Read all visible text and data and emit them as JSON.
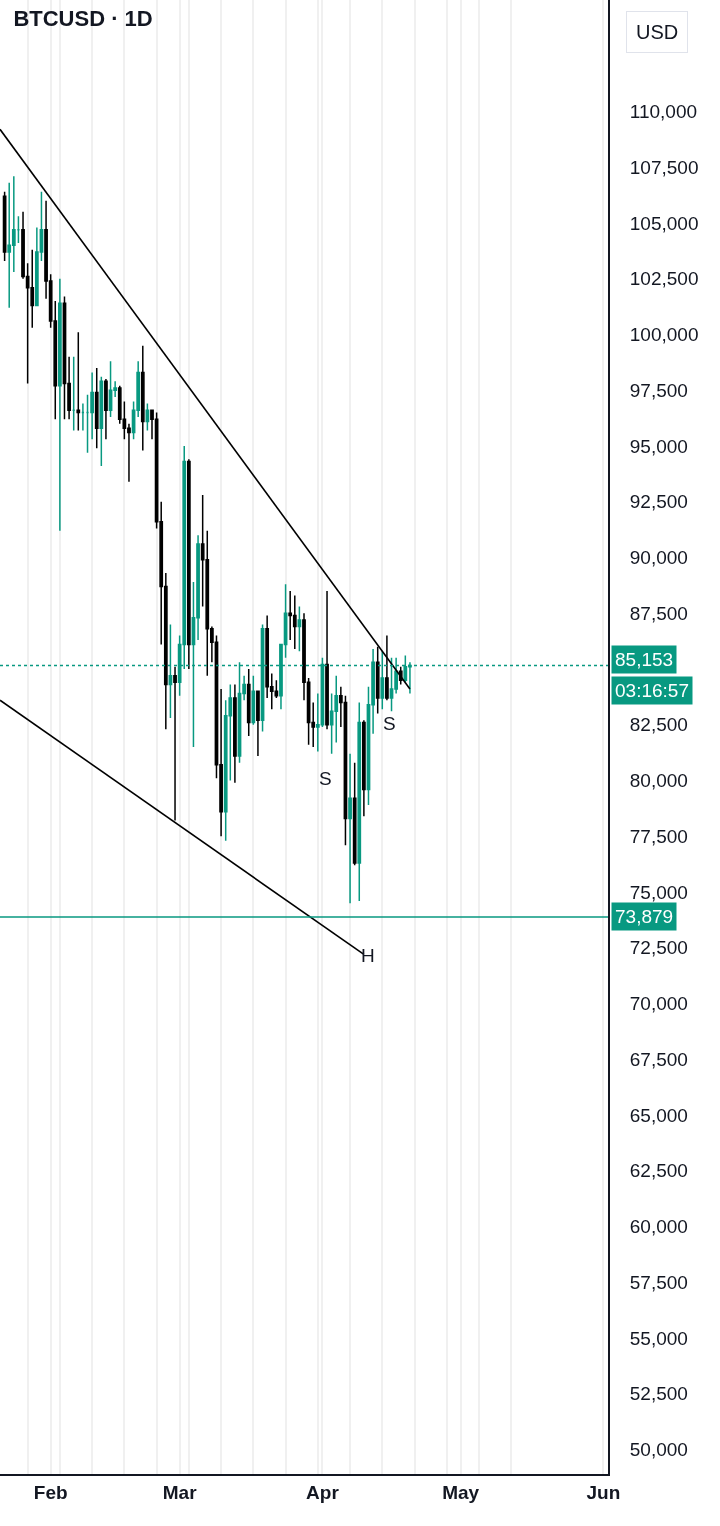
{
  "chart_data": {
    "type": "candlestick",
    "title": "BTCUSD · 1D",
    "x": [
      "--01-22",
      "--01-23",
      "--01-24",
      "--01-25",
      "--01-26",
      "--01-27",
      "--01-28",
      "--01-29",
      "--01-30",
      "--01-31",
      "--02-01",
      "--02-02",
      "--02-03",
      "--02-04",
      "--02-05",
      "--02-06",
      "--02-07",
      "--02-08",
      "--02-09",
      "--02-10",
      "--02-11",
      "--02-12",
      "--02-13",
      "--02-14",
      "--02-15",
      "--02-16",
      "--02-17",
      "--02-18",
      "--02-19",
      "--02-20",
      "--02-21",
      "--02-22",
      "--02-23",
      "--02-24",
      "--02-25",
      "--02-26",
      "--02-27",
      "--02-28",
      "--03-01",
      "--03-02",
      "--03-03",
      "--03-04",
      "--03-05",
      "--03-06",
      "--03-07",
      "--03-08",
      "--03-09",
      "--03-10",
      "--03-11",
      "--03-12",
      "--03-13",
      "--03-14",
      "--03-15",
      "--03-16",
      "--03-17",
      "--03-18",
      "--03-19",
      "--03-20",
      "--03-21",
      "--03-22",
      "--03-23",
      "--03-24",
      "--03-25",
      "--03-26",
      "--03-27",
      "--03-28",
      "--03-29",
      "--03-30",
      "--03-31",
      "--04-01",
      "--04-02",
      "--04-03",
      "--04-04",
      "--04-05",
      "--04-06",
      "--04-07",
      "--04-08",
      "--04-09",
      "--04-10",
      "--04-11",
      "--04-12",
      "--04-13",
      "--04-14",
      "--04-15",
      "--04-16",
      "--04-17",
      "--04-18",
      "--04-19",
      "--04-20"
    ],
    "ohlc": [
      [
        106200,
        106400,
        103300,
        103700
      ],
      [
        103700,
        106800,
        101200,
        104000
      ],
      [
        104000,
        107100,
        102800,
        104700
      ],
      [
        104700,
        105300,
        104100,
        104700
      ],
      [
        104700,
        105500,
        102500,
        102600
      ],
      [
        102600,
        103200,
        97800,
        102100
      ],
      [
        102100,
        103800,
        100300,
        101300
      ],
      [
        101300,
        104800,
        101300,
        103700
      ],
      [
        103700,
        106400,
        103300,
        104700
      ],
      [
        104700,
        106000,
        101600,
        102400
      ],
      [
        102400,
        102700,
        100300,
        100600
      ],
      [
        100600,
        101500,
        96200,
        97700
      ],
      [
        97700,
        102500,
        91200,
        101400
      ],
      [
        101400,
        101700,
        96200,
        97800
      ],
      [
        97800,
        99000,
        96200,
        96600
      ],
      [
        96600,
        99000,
        95700,
        96600
      ],
      [
        96600,
        100100,
        95700,
        96500
      ],
      [
        96500,
        96900,
        95700,
        96500
      ],
      [
        96500,
        97300,
        94700,
        96500
      ],
      [
        96500,
        98300,
        95300,
        97400
      ],
      [
        97400,
        98500,
        94900,
        95800
      ],
      [
        95800,
        98100,
        94100,
        97900
      ],
      [
        97900,
        98000,
        95300,
        96600
      ],
      [
        96600,
        98800,
        96300,
        97500
      ],
      [
        97500,
        97900,
        97200,
        97600
      ],
      [
        97600,
        97700,
        96000,
        96200
      ],
      [
        96200,
        97000,
        95300,
        95800
      ],
      [
        95800,
        96000,
        93400,
        95600
      ],
      [
        95600,
        97000,
        95300,
        96600
      ],
      [
        96600,
        98800,
        96300,
        98300
      ],
      [
        98300,
        99500,
        94800,
        96100
      ],
      [
        96100,
        96900,
        95700,
        96600
      ],
      [
        96600,
        96600,
        95300,
        96200
      ],
      [
        96200,
        96500,
        91300,
        91600
      ],
      [
        91600,
        92500,
        86100,
        88700
      ],
      [
        88700,
        89300,
        82300,
        84300
      ],
      [
        84300,
        87000,
        82800,
        84700
      ],
      [
        84700,
        85100,
        78200,
        84400
      ],
      [
        84400,
        86500,
        83800,
        86100
      ],
      [
        86100,
        95000,
        85000,
        94300
      ],
      [
        94300,
        94400,
        85000,
        86100
      ],
      [
        86100,
        88900,
        81500,
        87300
      ],
      [
        87300,
        91000,
        86300,
        90600
      ],
      [
        90600,
        92800,
        87800,
        89900
      ],
      [
        89900,
        91200,
        84700,
        86800
      ],
      [
        86800,
        86900,
        85300,
        86200
      ],
      [
        86200,
        86500,
        80100,
        80700
      ],
      [
        80700,
        84100,
        77500,
        78600
      ],
      [
        78600,
        83600,
        77300,
        82900
      ],
      [
        82900,
        84300,
        80000,
        83700
      ],
      [
        83700,
        84300,
        79900,
        81100
      ],
      [
        81100,
        85300,
        80800,
        83900
      ],
      [
        83900,
        84700,
        83600,
        84300
      ],
      [
        84300,
        85000,
        82000,
        82600
      ],
      [
        82600,
        84700,
        82500,
        84000
      ],
      [
        84000,
        84000,
        81100,
        82700
      ],
      [
        82700,
        87000,
        82200,
        86800
      ],
      [
        86800,
        87400,
        83700,
        84200
      ],
      [
        84200,
        84800,
        83200,
        84000
      ],
      [
        84000,
        84500,
        83700,
        83800
      ],
      [
        83800,
        86100,
        83200,
        86100
      ],
      [
        86100,
        88800,
        85500,
        87500
      ],
      [
        87500,
        88500,
        86300,
        87400
      ],
      [
        87400,
        88300,
        85900,
        86900
      ],
      [
        86900,
        87800,
        85800,
        87200
      ],
      [
        87200,
        87500,
        83600,
        84400
      ],
      [
        84400,
        84600,
        81600,
        82600
      ],
      [
        82600,
        83500,
        81500,
        82400
      ],
      [
        82400,
        83900,
        81300,
        82500
      ],
      [
        82500,
        85500,
        82400,
        85200
      ],
      [
        85200,
        88500,
        82300,
        82500
      ],
      [
        82500,
        83900,
        81200,
        83100
      ],
      [
        83100,
        84700,
        81700,
        83800
      ],
      [
        83800,
        84200,
        82400,
        83500
      ],
      [
        83500,
        83800,
        77100,
        78300
      ],
      [
        78300,
        81200,
        74500,
        79200
      ],
      [
        79200,
        80800,
        76200,
        76300
      ],
      [
        76300,
        83500,
        74600,
        82600
      ],
      [
        82600,
        82700,
        78400,
        79600
      ],
      [
        79600,
        84200,
        78900,
        83400
      ],
      [
        83400,
        85900,
        82100,
        85300
      ],
      [
        85300,
        86000,
        83000,
        83700
      ],
      [
        83700,
        85800,
        83200,
        84600
      ],
      [
        84600,
        86500,
        83600,
        83700
      ],
      [
        83700,
        85500,
        83100,
        84100
      ],
      [
        84100,
        85500,
        83900,
        84900
      ],
      [
        84900,
        85100,
        84300,
        84500
      ],
      [
        84500,
        85600,
        84400,
        85100
      ],
      [
        85100,
        85300,
        83900,
        85153
      ]
    ],
    "colors": [
      "#000000",
      "#089981",
      "#089981",
      "#089981",
      "#000000",
      "#000000",
      "#000000",
      "#089981",
      "#089981",
      "#000000",
      "#000000",
      "#000000",
      "#089981",
      "#000000",
      "#000000",
      "#089981",
      "#000000",
      "#089981",
      "#089981",
      "#089981",
      "#000000",
      "#089981",
      "#000000",
      "#089981",
      "#089981",
      "#000000",
      "#000000",
      "#000000",
      "#089981",
      "#089981",
      "#000000",
      "#089981",
      "#000000",
      "#000000",
      "#000000",
      "#000000",
      "#089981",
      "#000000",
      "#089981",
      "#089981",
      "#000000",
      "#089981",
      "#089981",
      "#000000",
      "#000000",
      "#000000",
      "#000000",
      "#000000",
      "#089981",
      "#089981",
      "#000000",
      "#089981",
      "#089981",
      "#000000",
      "#089981",
      "#000000",
      "#089981",
      "#000000",
      "#000000",
      "#000000",
      "#089981",
      "#089981",
      "#000000",
      "#000000",
      "#089981",
      "#000000",
      "#000000",
      "#000000",
      "#089981",
      "#089981",
      "#000000",
      "#089981",
      "#089981",
      "#000000",
      "#000000",
      "#089981",
      "#000000",
      "#089981",
      "#000000",
      "#089981",
      "#089981",
      "#000000",
      "#089981",
      "#000000",
      "#089981",
      "#089981",
      "#000000",
      "#089981",
      "#089981"
    ],
    "series": [
      {
        "type": "line",
        "x": [
          "--01-21",
          "--04-20"
        ],
        "values": [
          109200,
          84100
        ],
        "color": "#000000"
      },
      {
        "type": "line",
        "x": [
          "--01-21",
          "--04-10"
        ],
        "values": [
          83600,
          72200
        ],
        "color": "#000000"
      }
    ],
    "xlim": [
      "--01-21",
      "--06-02"
    ],
    "xticks": [
      {
        "value": "--02-01",
        "label": "Feb"
      },
      {
        "value": "--03-01",
        "label": "Mar"
      },
      {
        "value": "--04-01",
        "label": "Apr"
      },
      {
        "value": "--05-01",
        "label": "May"
      },
      {
        "value": "--06-01",
        "label": "Jun"
      },
      {
        "value": "--01-27",
        "label": null
      },
      {
        "value": "--02-03",
        "label": null
      },
      {
        "value": "--02-10",
        "label": null
      },
      {
        "value": "--02-17",
        "label": null
      },
      {
        "value": "--02-24",
        "label": null
      },
      {
        "value": "--03-03",
        "label": null
      },
      {
        "value": "--03-10",
        "label": null
      },
      {
        "value": "--03-17",
        "label": null
      },
      {
        "value": "--03-24",
        "label": null
      },
      {
        "value": "--03-31",
        "label": null
      },
      {
        "value": "--04-07",
        "label": null
      },
      {
        "value": "--04-14",
        "label": null
      },
      {
        "value": "--04-21",
        "label": null
      },
      {
        "value": "--04-28",
        "label": null
      },
      {
        "value": "--05-05",
        "label": null
      },
      {
        "value": "--05-12",
        "label": null
      }
    ],
    "ylim": [
      48900,
      115000
    ],
    "yticks": [
      {
        "value": 50000,
        "label": "50,000"
      },
      {
        "value": 52500,
        "label": "52,500"
      },
      {
        "value": 55000,
        "label": "55,000"
      },
      {
        "value": 57500,
        "label": "57,500"
      },
      {
        "value": 60000,
        "label": "60,000"
      },
      {
        "value": 62500,
        "label": "62,500"
      },
      {
        "value": 65000,
        "label": "65,000"
      },
      {
        "value": 67500,
        "label": "67,500"
      },
      {
        "value": 70000,
        "label": "70,000"
      },
      {
        "value": 72500,
        "label": "72,500"
      },
      {
        "value": 75000,
        "label": "75,000"
      },
      {
        "value": 77500,
        "label": "77,500"
      },
      {
        "value": 80000,
        "label": "80,000"
      },
      {
        "value": 82500,
        "label": "82,500"
      },
      {
        "value": 85000,
        "label": null
      },
      {
        "value": 87500,
        "label": "87,500"
      },
      {
        "value": 90000,
        "label": "90,000"
      },
      {
        "value": 92500,
        "label": "92,500"
      },
      {
        "value": 95000,
        "label": "95,000"
      },
      {
        "value": 97500,
        "label": "97,500"
      },
      {
        "value": 100000,
        "label": "100,000"
      },
      {
        "value": 102500,
        "label": "102,500"
      },
      {
        "value": 105000,
        "label": "105,000"
      },
      {
        "value": 107500,
        "label": "107,500"
      },
      {
        "value": 110000,
        "label": "110,000"
      }
    ],
    "grid": "x",
    "ref_lines": [
      {
        "axis": "y",
        "value": 85153,
        "label": "85,153",
        "color": "#089981",
        "line_style": "dotted"
      },
      {
        "axis": "y",
        "value": 73879,
        "label": "73,879",
        "color": "#089981",
        "line_style": "solid"
      }
    ],
    "annotations": [
      "USD",
      "03:16:57",
      "S",
      "S",
      "H"
    ]
  }
}
